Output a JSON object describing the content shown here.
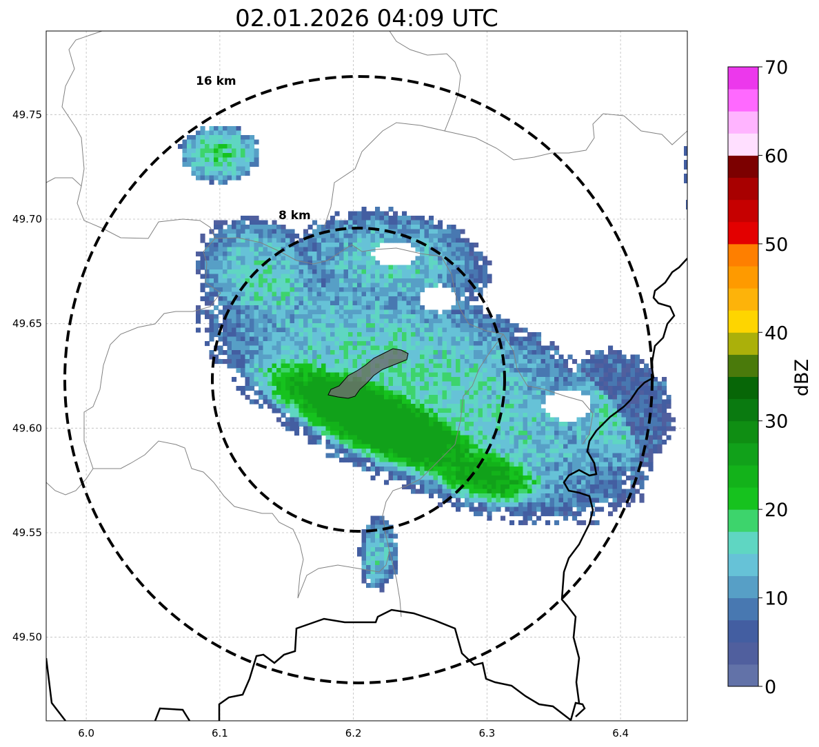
{
  "title": "02.01.2026 04:09 UTC",
  "map": {
    "lon_range": [
      5.97,
      6.45
    ],
    "lat_range": [
      49.46,
      49.79
    ],
    "x_ticks": [
      "6.0",
      "6.1",
      "6.2",
      "6.3",
      "6.4"
    ],
    "y_ticks": [
      "49.75",
      "49.70",
      "49.65",
      "49.60",
      "49.55",
      "49.50"
    ],
    "grid": true,
    "radar_center": {
      "lon": 6.205,
      "lat": 49.623
    },
    "range_rings": [
      {
        "label": "8 km",
        "radius_km": 8
      },
      {
        "label": "16 km",
        "radius_km": 16
      }
    ],
    "border_color": "#000000",
    "admin_line_color": "#808080"
  },
  "colorbar": {
    "label": "dBZ",
    "ticks": [
      "0",
      "10",
      "20",
      "30",
      "40",
      "50",
      "60",
      "70"
    ],
    "range": [
      0,
      70
    ],
    "colors": [
      "#6272a8",
      "#505f9e",
      "#435ea1",
      "#4878b1",
      "#579fc6",
      "#66c2d7",
      "#5fd6c2",
      "#3dd46c",
      "#16c21e",
      "#13b21a",
      "#11a11a",
      "#0f8e13",
      "#0a7a10",
      "#076607",
      "#4a7a0b",
      "#abb00a",
      "#fed500",
      "#fdb30a",
      "#fe9a00",
      "#fe7f00",
      "#e30000",
      "#c60000",
      "#a80000",
      "#7c0000",
      "#ffdfff",
      "#ffb4ff",
      "#ff69ff",
      "#ec38ec"
    ]
  }
}
